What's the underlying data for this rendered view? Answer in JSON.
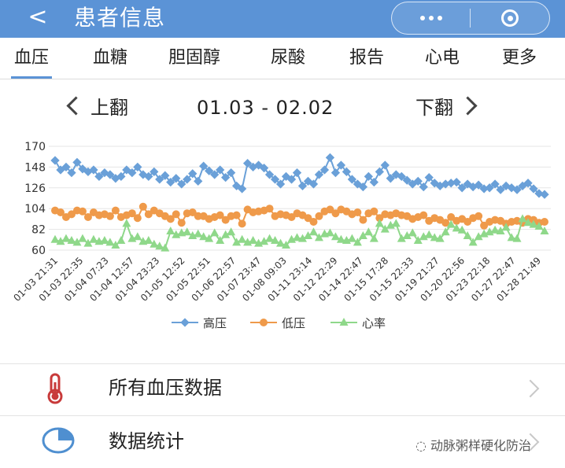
{
  "header": {
    "back_icon": "<",
    "title": "患者信息"
  },
  "tabs": [
    "血压",
    "血糖",
    "胆固醇",
    "尿酸",
    "报告",
    "心电",
    "更多"
  ],
  "active_tab": 0,
  "pager": {
    "prev_label": "上翻",
    "range": "01.03 - 02.02",
    "next_label": "下翻"
  },
  "menu": {
    "all_bp": "所有血压数据",
    "stats": "数据统计"
  },
  "watermark": "动脉粥样硬化防治",
  "colors": {
    "header": "#5b93d6",
    "systolic": "#6aa0d8",
    "diastolic": "#ef9a4a",
    "heart_rate": "#8fd88a"
  },
  "chart_data": {
    "type": "line",
    "y_ticks": [
      60,
      82,
      104,
      126,
      148,
      170
    ],
    "ylim": [
      60,
      170
    ],
    "x_tick_labels": [
      "01-03 21:31",
      "01-03 22:35",
      "01-04 07:23",
      "01-04 12:57",
      "01-04 23:23",
      "01-05 12:52",
      "01-05 22:51",
      "01-06 22:57",
      "01-07 23:47",
      "01-08 09:03",
      "01-11 23:14",
      "01-12 22:29",
      "01-14 22:47",
      "01-15 17:28",
      "01-15 22:33",
      "01-19 21:27",
      "01-20 22:56",
      "01-23 22:18",
      "01-27 22:47",
      "01-28 21:49"
    ],
    "legend": [
      "高压",
      "低压",
      "心率"
    ],
    "series": [
      {
        "name": "高压",
        "values": [
          155,
          145,
          148,
          142,
          153,
          146,
          143,
          145,
          138,
          142,
          140,
          136,
          138,
          145,
          142,
          148,
          140,
          138,
          143,
          135,
          139,
          132,
          136,
          130,
          135,
          141,
          133,
          149,
          144,
          140,
          145,
          137,
          142,
          128,
          125,
          152,
          148,
          150,
          147,
          140,
          135,
          130,
          138,
          135,
          142,
          128,
          133,
          130,
          140,
          145,
          158,
          142,
          150,
          143,
          135,
          130,
          127,
          138,
          132,
          143,
          150,
          136,
          140,
          138,
          134,
          130,
          133,
          127,
          137,
          131,
          128,
          130,
          131,
          132,
          126,
          130,
          127,
          129,
          125,
          126,
          130,
          124,
          128,
          126,
          124,
          128,
          131,
          125,
          120,
          119
        ]
      },
      {
        "name": "低压",
        "values": [
          102,
          100,
          95,
          98,
          102,
          101,
          95,
          100,
          97,
          98,
          96,
          102,
          95,
          97,
          99,
          94,
          106,
          98,
          102,
          99,
          96,
          93,
          98,
          89,
          99,
          100,
          96,
          96,
          93,
          95,
          97,
          92,
          96,
          97,
          88,
          103,
          100,
          101,
          102,
          104,
          96,
          98,
          97,
          95,
          99,
          97,
          94,
          90,
          96,
          101,
          103,
          99,
          103,
          101,
          98,
          100,
          92,
          99,
          101,
          94,
          98,
          97,
          99,
          97,
          96,
          93,
          95,
          97,
          91,
          94,
          92,
          89,
          95,
          91,
          93,
          90,
          94,
          96,
          86,
          90,
          92,
          91,
          88,
          90,
          91,
          89,
          93,
          92,
          89,
          90
        ]
      },
      {
        "name": "心率",
        "values": [
          71,
          69,
          72,
          70,
          68,
          72,
          67,
          71,
          69,
          70,
          68,
          65,
          70,
          88,
          72,
          74,
          69,
          70,
          66,
          64,
          62,
          80,
          76,
          78,
          79,
          75,
          77,
          74,
          72,
          78,
          70,
          76,
          79,
          68,
          71,
          68,
          70,
          67,
          69,
          72,
          70,
          67,
          65,
          71,
          73,
          72,
          75,
          79,
          73,
          77,
          78,
          74,
          71,
          70,
          72,
          68,
          75,
          79,
          72,
          88,
          82,
          86,
          88,
          72,
          75,
          78,
          70,
          74,
          76,
          73,
          72,
          79,
          87,
          83,
          81,
          75,
          68,
          74,
          77,
          79,
          81,
          80,
          84,
          73,
          72,
          93,
          89,
          87,
          85,
          80
        ]
      }
    ]
  }
}
